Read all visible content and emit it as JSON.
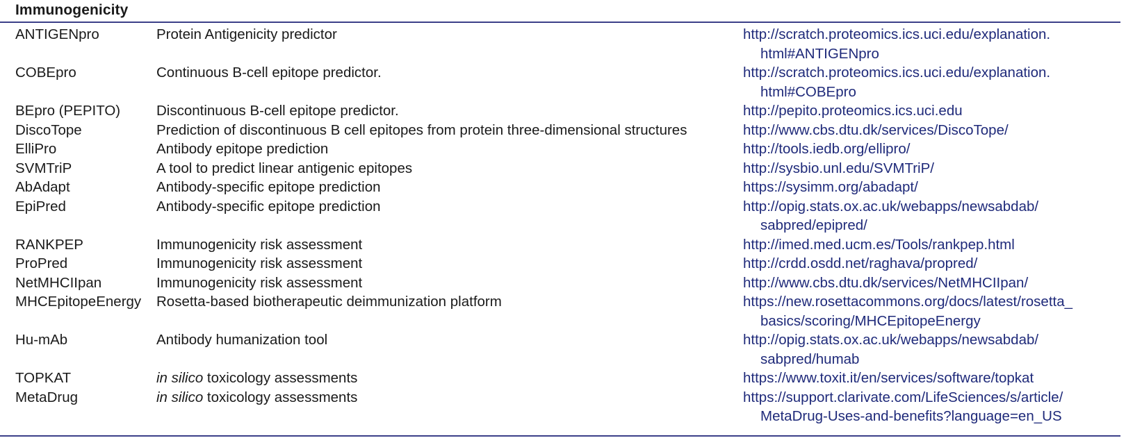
{
  "section_title": "Immunogenicity",
  "rows": [
    {
      "tool": "ANTIGENpro",
      "desc_italic": "",
      "desc": "Protein Antigenicity predictor",
      "url_lines": [
        "http://scratch.proteomics.ics.uci.edu/explanation.",
        "html#ANTIGENpro"
      ]
    },
    {
      "tool": "COBEpro",
      "desc_italic": "",
      "desc": "Continuous B-cell epitope predictor.",
      "url_lines": [
        "http://scratch.proteomics.ics.uci.edu/explanation.",
        "html#COBEpro"
      ]
    },
    {
      "tool": "BEpro (PEPITO)",
      "desc_italic": "",
      "desc": "Discontinuous B-cell epitope predictor.",
      "url_lines": [
        "http://pepito.proteomics.ics.uci.edu"
      ]
    },
    {
      "tool": "DiscoTope",
      "desc_italic": "",
      "desc": "Prediction of discontinuous B cell epitopes from protein three-dimensional structures",
      "url_lines": [
        "http://www.cbs.dtu.dk/services/DiscoTope/"
      ]
    },
    {
      "tool": "ElliPro",
      "desc_italic": "",
      "desc": "Antibody epitope prediction",
      "url_lines": [
        "http://tools.iedb.org/ellipro/"
      ]
    },
    {
      "tool": "SVMTriP",
      "desc_italic": "",
      "desc": "A tool to predict linear antigenic epitopes",
      "url_lines": [
        "http://sysbio.unl.edu/SVMTriP/"
      ]
    },
    {
      "tool": "AbAdapt",
      "desc_italic": "",
      "desc": "Antibody-specific epitope prediction",
      "url_lines": [
        "https://sysimm.org/abadapt/"
      ]
    },
    {
      "tool": "EpiPred",
      "desc_italic": "",
      "desc": "Antibody-specific epitope prediction",
      "url_lines": [
        "http://opig.stats.ox.ac.uk/webapps/newsabdab/",
        "sabpred/epipred/"
      ]
    },
    {
      "tool": "RANKPEP",
      "desc_italic": "",
      "desc": "Immunogenicity risk assessment",
      "url_lines": [
        "http://imed.med.ucm.es/Tools/rankpep.html"
      ]
    },
    {
      "tool": "ProPred",
      "desc_italic": "",
      "desc": "Immunogenicity risk assessment",
      "url_lines": [
        "http://crdd.osdd.net/raghava/propred/"
      ]
    },
    {
      "tool": "NetMHCIIpan",
      "desc_italic": "",
      "desc": "Immunogenicity risk assessment",
      "url_lines": [
        "http://www.cbs.dtu.dk/services/NetMHCIIpan/"
      ]
    },
    {
      "tool": "MHCEpitopeEnergy",
      "desc_italic": "",
      "desc": "Rosetta-based biotherapeutic deimmunization platform",
      "url_lines": [
        "https://new.rosettacommons.org/docs/latest/rosetta_",
        "basics/scoring/MHCEpitopeEnergy"
      ]
    },
    {
      "tool": "Hu-mAb",
      "desc_italic": "",
      "desc": "Antibody humanization tool",
      "url_lines": [
        "http://opig.stats.ox.ac.uk/webapps/newsabdab/",
        "sabpred/humab"
      ]
    },
    {
      "tool": "TOPKAT",
      "desc_italic": "in silico",
      "desc": " toxicology assessments",
      "url_lines": [
        "https://www.toxit.it/en/services/software/topkat"
      ]
    },
    {
      "tool": "MetaDrug",
      "desc_italic": "in silico",
      "desc": " toxicology assessments",
      "url_lines": [
        "https://support.clarivate.com/LifeSciences/s/article/",
        "MetaDrug-Uses-and-benefits?language=en_US"
      ]
    }
  ]
}
